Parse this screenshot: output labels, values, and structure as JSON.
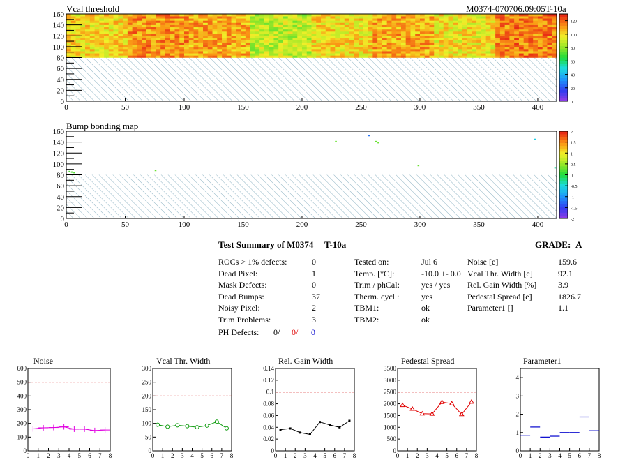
{
  "header": {
    "module_id": "M0374-070706.09:05T-10a"
  },
  "chart_data": [
    {
      "type": "heatmap",
      "title": "Vcal threshold",
      "xlim": [
        0,
        416
      ],
      "ylim": [
        0,
        160
      ],
      "x_ticks": [
        0,
        50,
        100,
        150,
        200,
        250,
        300,
        350,
        400
      ],
      "y_ticks": [
        0,
        20,
        40,
        60,
        80,
        100,
        120,
        140,
        160
      ],
      "hatched_region_y": [
        0,
        80
      ],
      "colorbar_ticks": [
        0,
        20,
        40,
        60,
        80,
        100,
        120
      ],
      "zlim": [
        0,
        130
      ],
      "columns": [
        {
          "x": [
            0,
            52
          ],
          "mean": 100
        },
        {
          "x": [
            52,
            104
          ],
          "mean": 112
        },
        {
          "x": [
            104,
            156
          ],
          "mean": 108
        },
        {
          "x": [
            156,
            208
          ],
          "mean": 88
        },
        {
          "x": [
            208,
            260
          ],
          "mean": 100
        },
        {
          "x": [
            260,
            312
          ],
          "mean": 108
        },
        {
          "x": [
            312,
            364
          ],
          "mean": 98
        },
        {
          "x": [
            364,
            416
          ],
          "mean": 115
        }
      ]
    },
    {
      "type": "heatmap",
      "title": "Bump bonding map",
      "xlim": [
        0,
        416
      ],
      "ylim": [
        0,
        160
      ],
      "x_ticks": [
        0,
        50,
        100,
        150,
        200,
        250,
        300,
        350,
        400
      ],
      "y_ticks": [
        0,
        20,
        40,
        60,
        80,
        100,
        120,
        140,
        160
      ],
      "hatched_region_y": [
        0,
        80
      ],
      "colorbar_ticks": [
        "2",
        "1.5",
        "1",
        "0.5",
        "0",
        "-0.5",
        "-1",
        "-1.5",
        "-2"
      ],
      "zlim": [
        -2,
        2
      ],
      "points": [
        {
          "x": 256,
          "y": 152,
          "z": -1.2
        },
        {
          "x": 228,
          "y": 141,
          "z": 0.3
        },
        {
          "x": 262,
          "y": 141,
          "z": 0.3
        },
        {
          "x": 264,
          "y": 139,
          "z": 0.3
        },
        {
          "x": 397,
          "y": 145,
          "z": -0.6
        },
        {
          "x": 298,
          "y": 97,
          "z": 0.3
        },
        {
          "x": 75,
          "y": 88,
          "z": 0.3
        },
        {
          "x": 2,
          "y": 86,
          "z": 0.2
        },
        {
          "x": 4,
          "y": 85,
          "z": 0.2
        },
        {
          "x": 6,
          "y": 84,
          "z": 0.2
        },
        {
          "x": 414,
          "y": 93,
          "z": -0.3
        }
      ]
    },
    {
      "type": "line",
      "title": "Noise",
      "x": [
        0.5,
        1.5,
        2.5,
        3.5,
        4.5,
        5.5,
        6.5,
        7.5
      ],
      "values": [
        160,
        168,
        170,
        175,
        158,
        158,
        148,
        152
      ],
      "xlim": [
        0,
        8
      ],
      "ylim": [
        0,
        600
      ],
      "y_ticks": [
        0,
        100,
        200,
        300,
        400,
        500,
        600
      ],
      "limit": 500,
      "color": "#e000e0",
      "marker": "plus"
    },
    {
      "type": "line",
      "title": "Vcal Thr. Width",
      "x": [
        0.5,
        1.5,
        2.5,
        3.5,
        4.5,
        5.5,
        6.5,
        7.5
      ],
      "values": [
        95,
        88,
        93,
        90,
        86,
        92,
        106,
        82
      ],
      "xlim": [
        0,
        8
      ],
      "ylim": [
        0,
        300
      ],
      "y_ticks": [
        0,
        50,
        100,
        150,
        200,
        250,
        300
      ],
      "limit": 200,
      "color": "#0a9a0a",
      "marker": "circle"
    },
    {
      "type": "line",
      "title": "Rel. Gain Width",
      "x": [
        0.5,
        1.5,
        2.5,
        3.5,
        4.5,
        5.5,
        6.5,
        7.5
      ],
      "values": [
        0.036,
        0.038,
        0.031,
        0.028,
        0.049,
        0.044,
        0.04,
        0.051
      ],
      "xlim": [
        0,
        8
      ],
      "ylim": [
        0,
        0.14
      ],
      "y_ticks": [
        0,
        0.02,
        0.04,
        0.06,
        0.08,
        0.1,
        0.12,
        0.14
      ],
      "limit": 0.1,
      "color": "#000000",
      "marker": "square"
    },
    {
      "type": "line",
      "title": "Pedestal Spread",
      "x": [
        0.5,
        1.5,
        2.5,
        3.5,
        4.5,
        5.5,
        6.5,
        7.5
      ],
      "values": [
        1940,
        1780,
        1580,
        1570,
        2070,
        2010,
        1550,
        2080
      ],
      "xlim": [
        0,
        8
      ],
      "ylim": [
        0,
        3500
      ],
      "y_ticks": [
        0,
        500,
        1000,
        1500,
        2000,
        2500,
        3000,
        3500
      ],
      "limit": 2500,
      "color": "#e00000",
      "marker": "triangle"
    },
    {
      "type": "scatter",
      "title": "Parameter1",
      "x": [
        0.5,
        1.5,
        2.5,
        3.5,
        4.5,
        5.5,
        6.5,
        7.5
      ],
      "values": [
        0.85,
        1.3,
        0.75,
        0.8,
        1.0,
        1.0,
        1.85,
        1.1
      ],
      "xlim": [
        0,
        8
      ],
      "ylim": [
        0,
        4.5
      ],
      "y_ticks": [
        0,
        1,
        2,
        3,
        4
      ],
      "color": "#0000cc",
      "marker": "errorbar"
    }
  ],
  "summary": {
    "title": "Test Summary of M0374",
    "tag": "T-10a",
    "grade_label": "GRADE:",
    "grade": "A",
    "left_rows": [
      {
        "label": "ROCs > 1% defects:",
        "value": "0"
      },
      {
        "label": "Dead Pixel:",
        "value": "1"
      },
      {
        "label": "Mask Defects:",
        "value": "0"
      },
      {
        "label": "Dead Bumps:",
        "value": "37"
      },
      {
        "label": "Noisy Pixel:",
        "value": "2"
      },
      {
        "label": "Trim Problems:",
        "value": "3"
      }
    ],
    "ph_defects": {
      "label": "PH Defects:",
      "v1": "0/",
      "v2": "0/",
      "v3": "0"
    },
    "mid_rows": [
      {
        "label": "Tested on:",
        "value": "Jul 6"
      },
      {
        "label": "Temp. [°C]:",
        "value": "-10.0 +- 0.0"
      },
      {
        "label": "Trim / phCal:",
        "value": "yes / yes"
      },
      {
        "label": "Therm. cycl.:",
        "value": "yes"
      },
      {
        "label": "TBM1:",
        "value": "ok"
      },
      {
        "label": "TBM2:",
        "value": "ok"
      }
    ],
    "right_rows": [
      {
        "label": "Noise [e]",
        "value": "159.6"
      },
      {
        "label": "Vcal Thr. Width [e]",
        "value": "92.1"
      },
      {
        "label": "Rel. Gain Width [%]",
        "value": "3.9"
      },
      {
        "label": "Pedestal Spread [e]",
        "value": "1826.7"
      },
      {
        "label": "Parameter1 []",
        "value": "1.1"
      }
    ]
  }
}
